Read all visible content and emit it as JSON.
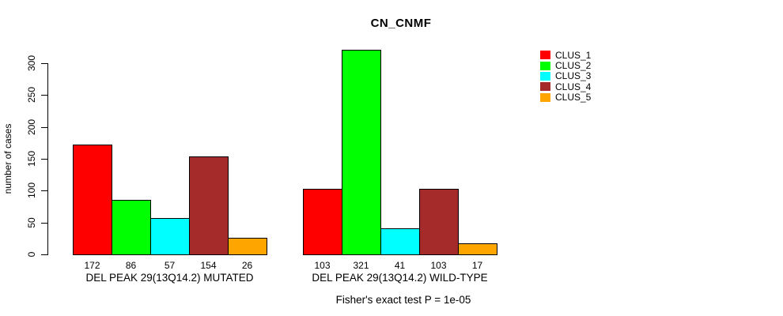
{
  "title": "CN_CNMF",
  "ylabel": "number of cases",
  "footer": "Fisher's exact test P = 1e-05",
  "legend": {
    "position": "top-right",
    "items": [
      {
        "label": "CLUS_1",
        "color": "#FF0000"
      },
      {
        "label": "CLUS_2",
        "color": "#00FF00"
      },
      {
        "label": "CLUS_3",
        "color": "#00FFFF"
      },
      {
        "label": "CLUS_4",
        "color": "#A52A2A"
      },
      {
        "label": "CLUS_5",
        "color": "#FFA500"
      }
    ]
  },
  "chart_data": {
    "type": "bar",
    "title": "CN_CNMF",
    "xlabel": "",
    "ylabel": "number of cases",
    "ylim": [
      0,
      300
    ],
    "yticks": [
      0,
      50,
      100,
      150,
      200,
      250,
      300
    ],
    "grid": false,
    "legend_position": "top-right",
    "bar_value_labels_shown": true,
    "categories": [
      "DEL PEAK 29(13Q14.2) MUTATED",
      "DEL PEAK 29(13Q14.2) WILD-TYPE"
    ],
    "series": [
      {
        "name": "CLUS_1",
        "color": "#FF0000",
        "values": [
          172,
          103
        ]
      },
      {
        "name": "CLUS_2",
        "color": "#00FF00",
        "values": [
          86,
          321
        ]
      },
      {
        "name": "CLUS_3",
        "color": "#00FFFF",
        "values": [
          57,
          41
        ]
      },
      {
        "name": "CLUS_4",
        "color": "#A52A2A",
        "values": [
          154,
          103
        ]
      },
      {
        "name": "CLUS_5",
        "color": "#FFA500",
        "values": [
          26,
          17
        ]
      }
    ],
    "annotation": "Fisher's exact test P = 1e-05"
  }
}
